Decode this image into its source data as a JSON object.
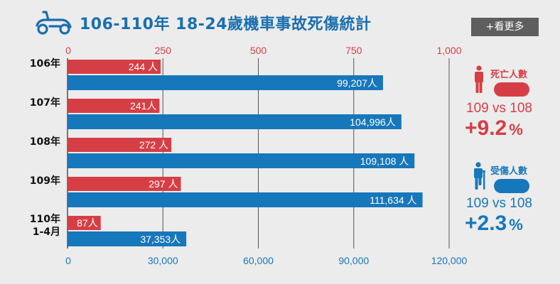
{
  "title": "106-110年 18-24歲機車事故死傷統計",
  "more_button": "+看更多",
  "icons": {
    "title": "scooter-icon",
    "deaths": "person-standing-icon",
    "injuries": "person-crutch-icon"
  },
  "colors": {
    "deaths": "#d63e45",
    "injuries": "#1777bb",
    "title": "#1a6fae"
  },
  "chart_data": {
    "type": "bar",
    "orientation": "horizontal",
    "categories": [
      "106年",
      "107年",
      "108年",
      "109年",
      "110年\n1-4月"
    ],
    "series": [
      {
        "name": "死亡人數",
        "axis": "top",
        "color": "#d63e45",
        "values": [
          244,
          241,
          272,
          297,
          87
        ],
        "labels": [
          "244 人",
          "241人",
          "272 人",
          "297 人",
          "87人"
        ]
      },
      {
        "name": "受傷人數",
        "axis": "bottom",
        "color": "#1777bb",
        "values": [
          99207,
          104996,
          109108,
          111634,
          37353
        ],
        "labels": [
          "99,207人",
          "104,996人",
          "109,108 人",
          "111,634 人",
          "37,353人"
        ]
      }
    ],
    "top_axis": {
      "range": [
        0,
        1000
      ],
      "ticks": [
        "0",
        "250",
        "500",
        "750",
        "1,000"
      ]
    },
    "bottom_axis": {
      "range": [
        0,
        120000
      ],
      "ticks": [
        "0",
        "30,000",
        "60,000",
        "90,000",
        "120,000"
      ]
    },
    "grid": true
  },
  "summary": {
    "deaths": {
      "label": "死亡人數",
      "compare": "109 vs 108",
      "sign": "+",
      "value": "9.2",
      "unit": "%"
    },
    "injuries": {
      "label": "受傷人數",
      "compare": "109 vs 108",
      "sign": "+",
      "value": "2.3",
      "unit": "%"
    }
  }
}
